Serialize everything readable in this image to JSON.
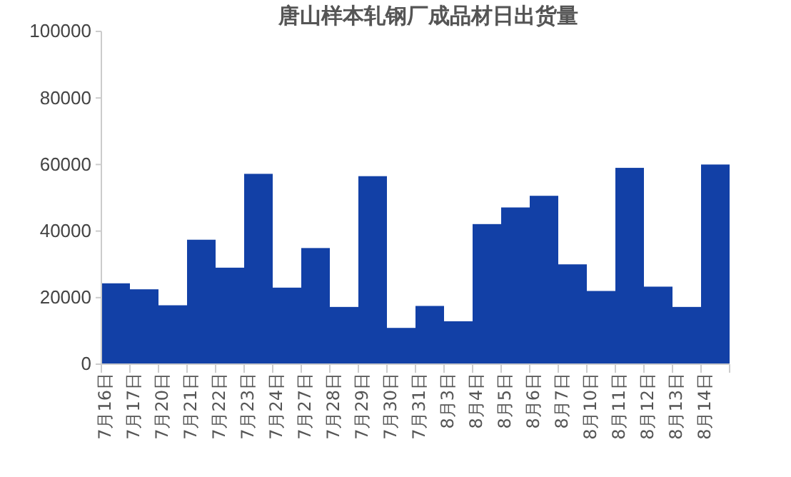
{
  "chart_data": {
    "type": "bar",
    "title": "唐山样本轧钢厂成品材日出货量",
    "categories": [
      "7月16日",
      "7月17日",
      "7月20日",
      "7月21日",
      "7月22日",
      "7月23日",
      "7月24日",
      "7月27日",
      "7月28日",
      "7月29日",
      "7月30日",
      "7月31日",
      "8月3日",
      "8月4日",
      "8月5日",
      "8月6日",
      "8月7日",
      "8月10日",
      "8月11日",
      "8月12日",
      "8月13日",
      "8月14日"
    ],
    "values": [
      24300,
      22500,
      17700,
      37400,
      29000,
      57200,
      23000,
      34900,
      17200,
      56500,
      10900,
      17500,
      12900,
      42100,
      47100,
      50600,
      30000,
      22000,
      59000,
      23300,
      17200,
      60000
    ],
    "color": "#1240a6",
    "ylim": [
      0,
      100000
    ],
    "yticks": [
      0,
      20000,
      40000,
      60000,
      80000,
      100000
    ],
    "grid": false
  }
}
